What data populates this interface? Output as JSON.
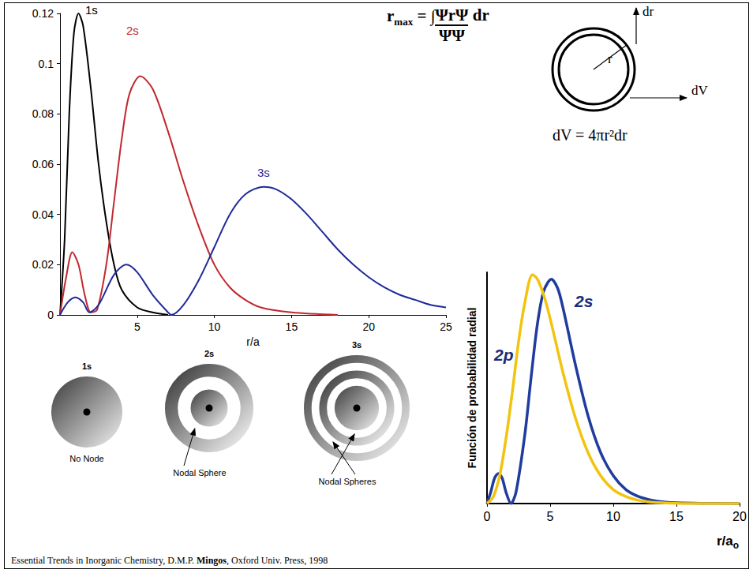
{
  "chart_data": [
    {
      "type": "line",
      "x_label": "r/a",
      "xlim": [
        0,
        25
      ],
      "xticks": [
        5,
        10,
        15,
        20,
        25
      ],
      "ylim": [
        0,
        0.12
      ],
      "yticks": [
        0,
        0.02,
        0.04,
        0.06,
        0.08,
        0.1,
        0.12
      ],
      "grid": false,
      "series": [
        {
          "name": "1s",
          "color": "#000000",
          "x": [
            0,
            0.3,
            0.6,
            0.9,
            1.2,
            1.5,
            2,
            2.5,
            3,
            3.5,
            4,
            5,
            6,
            7
          ],
          "values": [
            0,
            0.03,
            0.08,
            0.112,
            0.12,
            0.115,
            0.09,
            0.06,
            0.037,
            0.02,
            0.01,
            0.003,
            0.001,
            0
          ]
        },
        {
          "name": "2s",
          "color": "#c0282d",
          "x": [
            0,
            0.4,
            0.8,
            1.2,
            1.6,
            2,
            2.4,
            3,
            3.5,
            4,
            4.5,
            5.2,
            6,
            7,
            8,
            9,
            10,
            11,
            12,
            13,
            15,
            18
          ],
          "values": [
            0,
            0.015,
            0.025,
            0.02,
            0.008,
            0.001,
            0.002,
            0.02,
            0.045,
            0.07,
            0.088,
            0.095,
            0.09,
            0.073,
            0.053,
            0.035,
            0.02,
            0.011,
            0.006,
            0.003,
            0.001,
            0
          ]
        },
        {
          "name": "3s",
          "color": "#1f2a9a",
          "x": [
            0,
            0.5,
            1,
            1.5,
            1.9,
            2.5,
            3.5,
            4.3,
            5,
            6,
            7,
            7.2,
            8,
            9,
            10,
            11,
            12,
            13.2,
            14,
            15,
            16,
            17,
            18,
            19,
            20,
            21,
            22,
            23,
            24,
            25
          ],
          "values": [
            0,
            0.005,
            0.007,
            0.005,
            0.001,
            0.004,
            0.016,
            0.02,
            0.017,
            0.008,
            0.001,
            0,
            0.004,
            0.014,
            0.027,
            0.04,
            0.048,
            0.051,
            0.05,
            0.046,
            0.04,
            0.033,
            0.026,
            0.02,
            0.015,
            0.011,
            0.008,
            0.006,
            0.004,
            0.003
          ]
        }
      ]
    },
    {
      "type": "line",
      "x_label": "r/a",
      "x_label_subscript": "o",
      "y_label": "Función de probabilidad radial",
      "xlim": [
        0,
        20
      ],
      "xticks": [
        0,
        5,
        10,
        15,
        20
      ],
      "ylim": [
        0,
        1
      ],
      "tick_labels": "x",
      "grid": false,
      "series": [
        {
          "name": "2s",
          "color": "#1f3c9e",
          "x": [
            0,
            0.3,
            0.6,
            0.9,
            1.2,
            1.5,
            1.9,
            2.3,
            3,
            3.5,
            4,
            4.5,
            5.1,
            5.6,
            6,
            7,
            8,
            9,
            10,
            11,
            12,
            13,
            14,
            15,
            17,
            20
          ],
          "values": [
            0,
            0.05,
            0.11,
            0.13,
            0.11,
            0.05,
            0,
            0.05,
            0.3,
            0.55,
            0.78,
            0.92,
            0.97,
            0.93,
            0.85,
            0.6,
            0.38,
            0.22,
            0.12,
            0.06,
            0.03,
            0.015,
            0.007,
            0.003,
            0.001,
            0
          ]
        },
        {
          "name": "2p",
          "color": "#f2c40f",
          "x": [
            0,
            0.5,
            1,
            1.5,
            2,
            2.5,
            3,
            3.6,
            4,
            4.5,
            5,
            6,
            7,
            8,
            9,
            10,
            11,
            12,
            13,
            15,
            17,
            20
          ],
          "values": [
            0,
            0.03,
            0.12,
            0.28,
            0.48,
            0.7,
            0.87,
            0.99,
            0.97,
            0.9,
            0.8,
            0.57,
            0.37,
            0.22,
            0.12,
            0.06,
            0.03,
            0.014,
            0.006,
            0.001,
            0,
            0
          ]
        }
      ]
    }
  ],
  "formula": {
    "lhs": "r",
    "lhs_subscript": "max",
    "equals": "=",
    "integral_sign": "∫",
    "numerator": "ΨrΨ",
    "differential": "dr",
    "denominator": "ΨΨ"
  },
  "shell_diagram": {
    "radius_label": "r",
    "thickness_label": "dr",
    "volume_label": "dV",
    "formula": "dV = 4πr²dr"
  },
  "orbital_diagrams": [
    {
      "title": "1s",
      "caption": "No Node",
      "nodes": 0
    },
    {
      "title": "2s",
      "caption": "Nodal Sphere",
      "nodes": 1
    },
    {
      "title": "3s",
      "caption": "Nodal Spheres",
      "nodes": 2
    }
  ],
  "citation": {
    "before": "Essential Trends in Inorganic Chemistry, D.M.P. ",
    "bold": "Mingos",
    "after": ", Oxford Univ. Press, 1998"
  }
}
